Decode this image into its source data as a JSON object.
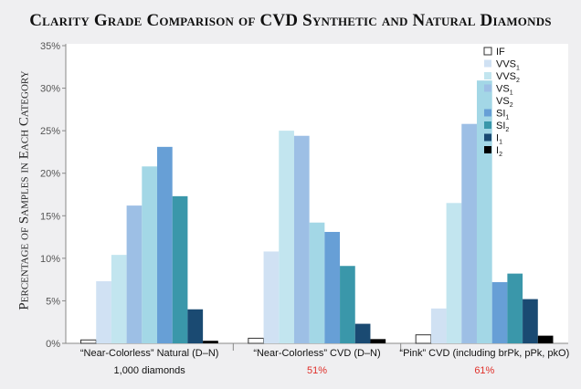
{
  "chart_data": {
    "type": "bar",
    "title": "Clarity Grade Comparison of CVD Synthetic and Natural Diamonds",
    "ylabel": "Percentage of Samples in Each Category",
    "xlabel": "",
    "ylim": [
      0,
      35
    ],
    "yticks": [
      "0%",
      "5%",
      "10%",
      "15%",
      "20%",
      "25%",
      "30%",
      "35%"
    ],
    "grid": false,
    "legend_position": "top-right",
    "categories": [
      {
        "label": "“Near-Colorless” Natural (D–N)",
        "sublabel": "1,000 diamonds",
        "sublabel_color": "#111111"
      },
      {
        "label": "“Near-Colorless” CVD (D–N)",
        "sublabel": "51%",
        "sublabel_color": "#e0302a"
      },
      {
        "label": "“Pink” CVD (including brPk, pPk, pkO)",
        "sublabel": "61%",
        "sublabel_color": "#e0302a"
      }
    ],
    "series": [
      {
        "name": "IF",
        "base": "IF",
        "sub": "",
        "color": "#ffffff",
        "values": [
          0.4,
          0.6,
          1.0
        ]
      },
      {
        "name": "VVS1",
        "base": "VVS",
        "sub": "1",
        "color": "#d0e1f3",
        "values": [
          7.3,
          10.8,
          4.1
        ]
      },
      {
        "name": "VVS2",
        "base": "VVS",
        "sub": "2",
        "color": "#c2e5ef",
        "values": [
          10.4,
          25.0,
          16.5
        ]
      },
      {
        "name": "VS1",
        "base": "VS",
        "sub": "1",
        "color": "#9dbfe5",
        "values": [
          16.2,
          24.4,
          25.8
        ]
      },
      {
        "name": "VS2",
        "base": "VS",
        "sub": "2",
        "color": "#a3d7e6",
        "values": [
          20.8,
          14.2,
          30.9
        ]
      },
      {
        "name": "SI1",
        "base": "SI",
        "sub": "1",
        "color": "#679fd6",
        "values": [
          23.1,
          13.1,
          7.2
        ]
      },
      {
        "name": "SI2",
        "base": "SI",
        "sub": "2",
        "color": "#3a97aa",
        "values": [
          17.3,
          9.1,
          8.2
        ]
      },
      {
        "name": "I1",
        "base": "I",
        "sub": "1",
        "color": "#1a4a72",
        "values": [
          4.0,
          2.3,
          5.2
        ]
      },
      {
        "name": "I2",
        "base": "I",
        "sub": "2",
        "color": "#000000",
        "values": [
          0.3,
          0.5,
          0.9
        ]
      }
    ]
  }
}
